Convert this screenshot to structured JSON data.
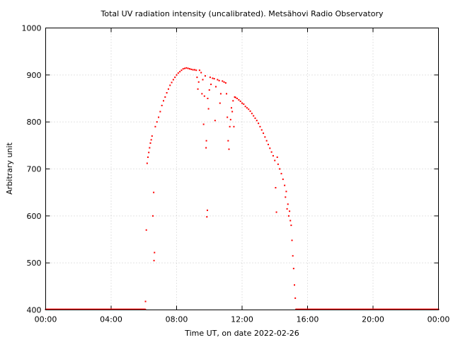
{
  "chart_data": {
    "type": "scatter",
    "title": "Total UV radiation intensity (uncalibrated). Metsähovi Radio Observatory",
    "xlabel": "Time UT, on date 2022-02-26",
    "ylabel": "Arbitrary unit",
    "xlim_hours": [
      0,
      24
    ],
    "ylim": [
      400,
      1000
    ],
    "x_ticks": [
      {
        "value": 0,
        "label": "00:00"
      },
      {
        "value": 4,
        "label": "04:00"
      },
      {
        "value": 8,
        "label": "08:00"
      },
      {
        "value": 12,
        "label": "12:00"
      },
      {
        "value": 16,
        "label": "16:00"
      },
      {
        "value": 20,
        "label": "20:00"
      },
      {
        "value": 24,
        "label": "00:00"
      }
    ],
    "y_ticks": [
      400,
      500,
      600,
      700,
      800,
      900,
      1000
    ],
    "grid": true,
    "series": [
      {
        "color": "#ff0000",
        "marker": "dot",
        "points": [
          [
            6.1,
            418
          ],
          [
            6.15,
            570
          ],
          [
            6.2,
            712
          ],
          [
            6.25,
            725
          ],
          [
            6.3,
            735
          ],
          [
            6.35,
            745
          ],
          [
            6.4,
            755
          ],
          [
            6.45,
            762
          ],
          [
            6.5,
            770
          ],
          [
            6.55,
            600
          ],
          [
            6.6,
            650
          ],
          [
            6.62,
            505
          ],
          [
            6.65,
            522
          ],
          [
            6.7,
            790
          ],
          [
            6.8,
            800
          ],
          [
            6.9,
            810
          ],
          [
            7.0,
            822
          ],
          [
            7.1,
            835
          ],
          [
            7.2,
            845
          ],
          [
            7.3,
            853
          ],
          [
            7.4,
            862
          ],
          [
            7.5,
            870
          ],
          [
            7.6,
            878
          ],
          [
            7.7,
            884
          ],
          [
            7.8,
            890
          ],
          [
            7.9,
            895
          ],
          [
            8.0,
            900
          ],
          [
            8.1,
            904
          ],
          [
            8.2,
            907
          ],
          [
            8.3,
            910
          ],
          [
            8.4,
            913
          ],
          [
            8.5,
            914
          ],
          [
            8.6,
            915
          ],
          [
            8.7,
            914
          ],
          [
            8.8,
            913
          ],
          [
            8.9,
            912
          ],
          [
            9.0,
            911
          ],
          [
            9.1,
            911
          ],
          [
            9.2,
            910
          ],
          [
            9.25,
            895
          ],
          [
            9.3,
            870
          ],
          [
            9.35,
            885
          ],
          [
            9.4,
            910
          ],
          [
            9.5,
            905
          ],
          [
            9.55,
            860
          ],
          [
            9.6,
            890
          ],
          [
            9.65,
            795
          ],
          [
            9.7,
            855
          ],
          [
            9.75,
            898
          ],
          [
            9.8,
            745
          ],
          [
            9.82,
            760
          ],
          [
            9.85,
            598
          ],
          [
            9.88,
            612
          ],
          [
            9.9,
            850
          ],
          [
            9.95,
            828
          ],
          [
            10.0,
            868
          ],
          [
            10.05,
            895
          ],
          [
            10.1,
            880
          ],
          [
            10.2,
            893
          ],
          [
            10.3,
            892
          ],
          [
            10.35,
            803
          ],
          [
            10.4,
            875
          ],
          [
            10.5,
            890
          ],
          [
            10.6,
            888
          ],
          [
            10.65,
            840
          ],
          [
            10.7,
            860
          ],
          [
            10.8,
            887
          ],
          [
            10.9,
            885
          ],
          [
            11.0,
            883
          ],
          [
            11.05,
            860
          ],
          [
            11.1,
            810
          ],
          [
            11.15,
            760
          ],
          [
            11.2,
            742
          ],
          [
            11.25,
            790
          ],
          [
            11.3,
            805
          ],
          [
            11.35,
            830
          ],
          [
            11.4,
            822
          ],
          [
            11.45,
            845
          ],
          [
            11.5,
            790
          ],
          [
            11.55,
            853
          ],
          [
            11.6,
            852
          ],
          [
            11.7,
            850
          ],
          [
            11.8,
            847
          ],
          [
            11.9,
            844
          ],
          [
            12.0,
            840
          ],
          [
            12.1,
            838
          ],
          [
            12.2,
            833
          ],
          [
            12.3,
            830
          ],
          [
            12.4,
            827
          ],
          [
            12.5,
            823
          ],
          [
            12.6,
            818
          ],
          [
            12.7,
            813
          ],
          [
            12.8,
            808
          ],
          [
            12.9,
            803
          ],
          [
            13.0,
            797
          ],
          [
            13.1,
            790
          ],
          [
            13.2,
            783
          ],
          [
            13.3,
            776
          ],
          [
            13.4,
            768
          ],
          [
            13.5,
            760
          ],
          [
            13.6,
            752
          ],
          [
            13.7,
            744
          ],
          [
            13.8,
            736
          ],
          [
            13.9,
            728
          ],
          [
            14.0,
            718
          ],
          [
            14.05,
            660
          ],
          [
            14.1,
            608
          ],
          [
            14.15,
            725
          ],
          [
            14.2,
            710
          ],
          [
            14.3,
            700
          ],
          [
            14.4,
            690
          ],
          [
            14.5,
            678
          ],
          [
            14.6,
            665
          ],
          [
            14.65,
            640
          ],
          [
            14.7,
            652
          ],
          [
            14.75,
            615
          ],
          [
            14.8,
            625
          ],
          [
            14.85,
            600
          ],
          [
            14.9,
            610
          ],
          [
            14.95,
            590
          ],
          [
            15.0,
            580
          ],
          [
            15.05,
            548
          ],
          [
            15.1,
            515
          ],
          [
            15.15,
            488
          ],
          [
            15.2,
            453
          ],
          [
            15.25,
            425
          ],
          [
            15.3,
            401
          ]
        ],
        "baseline": [
          {
            "x_start": 0,
            "x_end": 6.1,
            "y": 401
          },
          {
            "x_start": 15.3,
            "x_end": 24,
            "y": 401
          }
        ]
      }
    ]
  }
}
